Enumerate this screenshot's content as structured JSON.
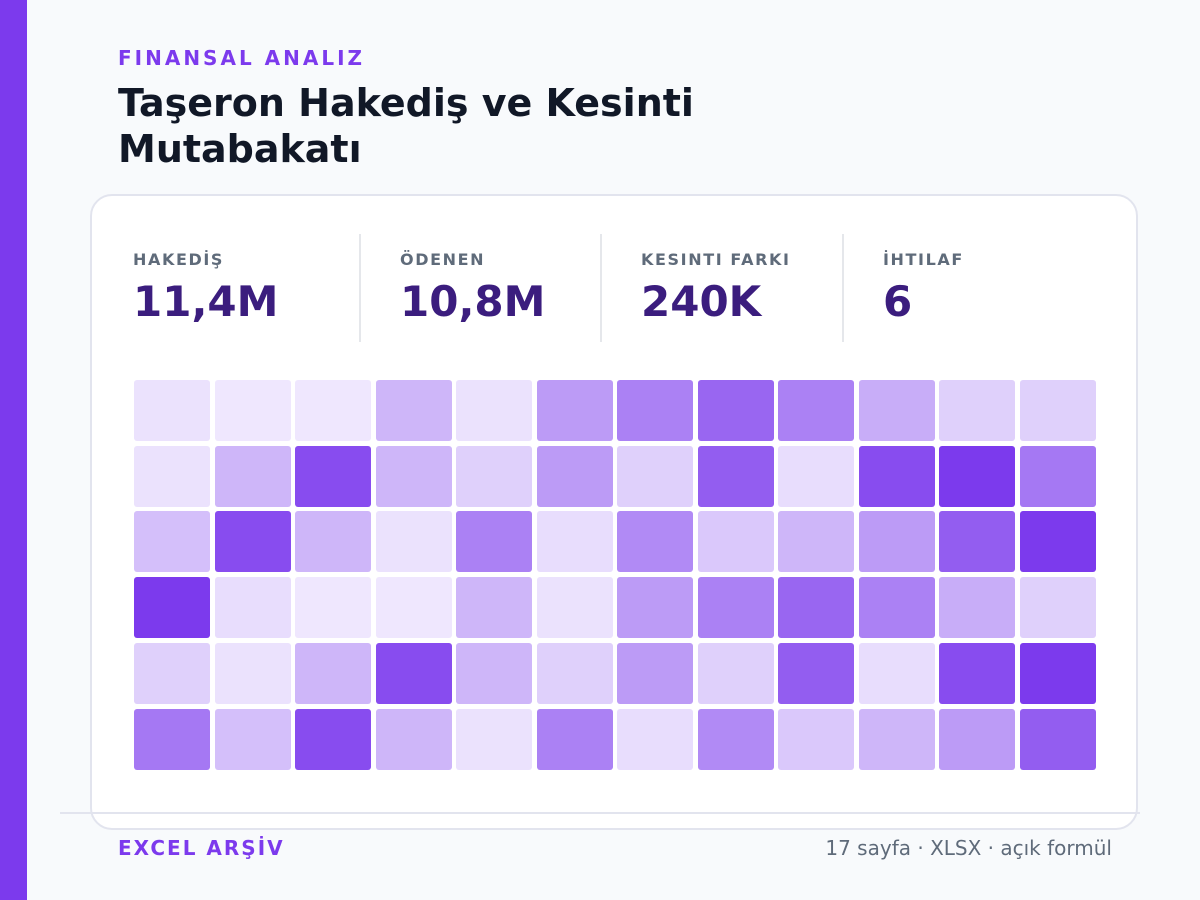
{
  "header": {
    "eyebrow": "FINANSAL ANALIZ",
    "title": "Taşeron Hakediş ve Kesinti Mutabakatı"
  },
  "kpis": [
    {
      "label": "HAKEDİŞ",
      "value": "11,4M"
    },
    {
      "label": "ÖDENEN",
      "value": "10,8M"
    },
    {
      "label": "KESINTI FARKI",
      "value": "240K"
    },
    {
      "label": "İHTILAF",
      "value": "6"
    }
  ],
  "footer": {
    "left": "EXCEL ARŞİV",
    "right": "17 sayfa · XLSX · açık formül"
  },
  "colors": {
    "accent": "#7c3aed",
    "kpi_value": "#3b1d7e",
    "cell_min": "#f1ebfe",
    "cell_max": "#7c3aed"
  },
  "chart_data": {
    "type": "heatmap",
    "rows": 6,
    "columns": 12,
    "values": [
      [
        0.05,
        0.02,
        0.02,
        0.3,
        0.05,
        0.45,
        0.6,
        0.75,
        0.6,
        0.35,
        0.15,
        0.15
      ],
      [
        0.05,
        0.3,
        0.9,
        0.3,
        0.15,
        0.45,
        0.15,
        0.8,
        0.08,
        0.9,
        1.0,
        0.65
      ],
      [
        0.25,
        0.9,
        0.3,
        0.05,
        0.6,
        0.08,
        0.55,
        0.2,
        0.3,
        0.45,
        0.8,
        1.0
      ],
      [
        1.0,
        0.08,
        0.02,
        0.02,
        0.3,
        0.05,
        0.45,
        0.6,
        0.75,
        0.6,
        0.35,
        0.15
      ],
      [
        0.15,
        0.05,
        0.3,
        0.9,
        0.3,
        0.15,
        0.45,
        0.15,
        0.8,
        0.08,
        0.9,
        1.0
      ],
      [
        0.65,
        0.25,
        0.9,
        0.3,
        0.05,
        0.6,
        0.08,
        0.55,
        0.2,
        0.3,
        0.45,
        0.8
      ]
    ]
  }
}
